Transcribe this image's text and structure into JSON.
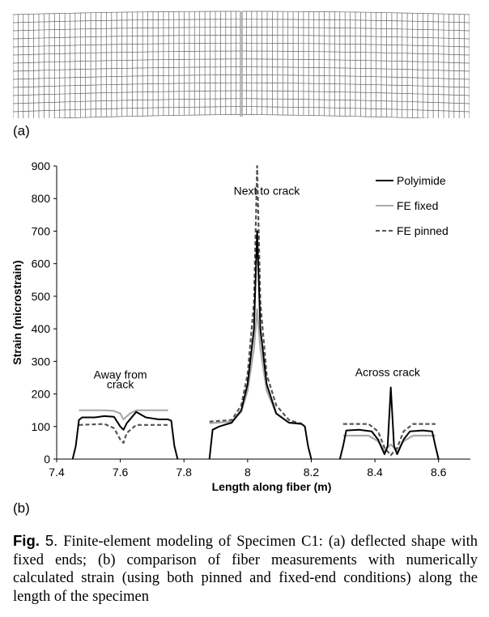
{
  "figure": {
    "panel_a_label": "(a)",
    "panel_b_label": "(b)",
    "caption": {
      "fig_word": "Fig.",
      "fig_number": "5.",
      "text": "Finite-element modeling of Specimen C1: (a) deflected shape with fixed ends; (b) comparison of fiber measurements with numerically calculated strain (using both pinned and fixed-end conditions) along the length of the specimen"
    },
    "mesh": {
      "columns": 88,
      "rows": 13,
      "color": "#666666"
    }
  },
  "chart_data": {
    "type": "line",
    "title": "",
    "xlabel": "Length along fiber (m)",
    "ylabel": "Strain (microstrain)",
    "xlim": [
      7.4,
      8.7
    ],
    "ylim": [
      0,
      900
    ],
    "xticks": [
      "7.4",
      "7.6",
      "7.8",
      "8",
      "8.2",
      "8.4",
      "8.6"
    ],
    "yticks": [
      "0",
      "100",
      "200",
      "300",
      "400",
      "500",
      "600",
      "700",
      "800",
      "900"
    ],
    "grid": false,
    "legend_position": "top-right",
    "annotations": [
      {
        "text": "Away from",
        "x": 7.6,
        "y": 247
      },
      {
        "text": "crack",
        "x": 7.6,
        "y": 217
      },
      {
        "text": "Next to crack",
        "x": 8.06,
        "y": 812
      },
      {
        "text": "Across crack",
        "x": 8.44,
        "y": 255
      }
    ],
    "series": [
      {
        "name": "Polyimide",
        "color": "#000000",
        "dash": "solid",
        "segments": [
          [
            [
              7.45,
              0
            ],
            [
              7.46,
              40
            ],
            [
              7.47,
              120
            ],
            [
              7.48,
              128
            ],
            [
              7.52,
              128
            ],
            [
              7.55,
              132
            ],
            [
              7.58,
              130
            ],
            [
              7.6,
              100
            ],
            [
              7.61,
              90
            ],
            [
              7.62,
              110
            ],
            [
              7.65,
              145
            ],
            [
              7.68,
              128
            ],
            [
              7.72,
              122
            ],
            [
              7.75,
              122
            ],
            [
              7.76,
              118
            ],
            [
              7.77,
              40
            ],
            [
              7.78,
              0
            ]
          ],
          [
            [
              7.88,
              0
            ],
            [
              7.89,
              90
            ],
            [
              7.91,
              100
            ],
            [
              7.95,
              112
            ],
            [
              7.98,
              150
            ],
            [
              8.0,
              230
            ],
            [
              8.02,
              400
            ],
            [
              8.03,
              700
            ],
            [
              8.04,
              400
            ],
            [
              8.06,
              230
            ],
            [
              8.09,
              140
            ],
            [
              8.13,
              112
            ],
            [
              8.17,
              108
            ],
            [
              8.18,
              100
            ],
            [
              8.19,
              40
            ],
            [
              8.2,
              0
            ]
          ],
          [
            [
              8.29,
              0
            ],
            [
              8.3,
              40
            ],
            [
              8.31,
              88
            ],
            [
              8.35,
              90
            ],
            [
              8.39,
              85
            ],
            [
              8.41,
              60
            ],
            [
              8.43,
              15
            ],
            [
              8.44,
              40
            ],
            [
              8.45,
              220
            ],
            [
              8.46,
              40
            ],
            [
              8.47,
              15
            ],
            [
              8.49,
              60
            ],
            [
              8.51,
              85
            ],
            [
              8.55,
              88
            ],
            [
              8.58,
              85
            ],
            [
              8.59,
              40
            ],
            [
              8.6,
              0
            ]
          ]
        ]
      },
      {
        "name": "FE fixed",
        "color": "#aaaaaa",
        "dash": "solid",
        "segments": [
          [
            [
              7.47,
              150
            ],
            [
              7.55,
              150
            ],
            [
              7.58,
              148
            ],
            [
              7.6,
              140
            ],
            [
              7.61,
              122
            ],
            [
              7.63,
              140
            ],
            [
              7.65,
              150
            ],
            [
              7.75,
              150
            ]
          ],
          [
            [
              7.88,
              110
            ],
            [
              7.95,
              115
            ],
            [
              7.98,
              145
            ],
            [
              8.0,
              210
            ],
            [
              8.02,
              340
            ],
            [
              8.03,
              460
            ],
            [
              8.04,
              340
            ],
            [
              8.06,
              210
            ],
            [
              8.09,
              140
            ],
            [
              8.13,
              112
            ],
            [
              8.17,
              110
            ]
          ],
          [
            [
              8.3,
              72
            ],
            [
              8.38,
              72
            ],
            [
              8.41,
              55
            ],
            [
              8.43,
              25
            ],
            [
              8.45,
              45
            ],
            [
              8.47,
              25
            ],
            [
              8.49,
              55
            ],
            [
              8.52,
              72
            ],
            [
              8.59,
              72
            ]
          ]
        ]
      },
      {
        "name": "FE pinned",
        "color": "#555555",
        "dash": "dashed",
        "segments": [
          [
            [
              7.47,
              105
            ],
            [
              7.55,
              108
            ],
            [
              7.58,
              95
            ],
            [
              7.6,
              60
            ],
            [
              7.61,
              50
            ],
            [
              7.62,
              80
            ],
            [
              7.65,
              105
            ],
            [
              7.75,
              105
            ]
          ],
          [
            [
              7.88,
              115
            ],
            [
              7.95,
              120
            ],
            [
              7.98,
              165
            ],
            [
              8.0,
              260
            ],
            [
              8.02,
              480
            ],
            [
              8.03,
              900
            ],
            [
              8.04,
              480
            ],
            [
              8.06,
              260
            ],
            [
              8.09,
              165
            ],
            [
              8.13,
              120
            ],
            [
              8.17,
              108
            ]
          ],
          [
            [
              8.3,
              108
            ],
            [
              8.38,
              108
            ],
            [
              8.41,
              85
            ],
            [
              8.43,
              35
            ],
            [
              8.45,
              12
            ],
            [
              8.47,
              35
            ],
            [
              8.49,
              85
            ],
            [
              8.52,
              108
            ],
            [
              8.59,
              108
            ]
          ]
        ]
      }
    ]
  }
}
